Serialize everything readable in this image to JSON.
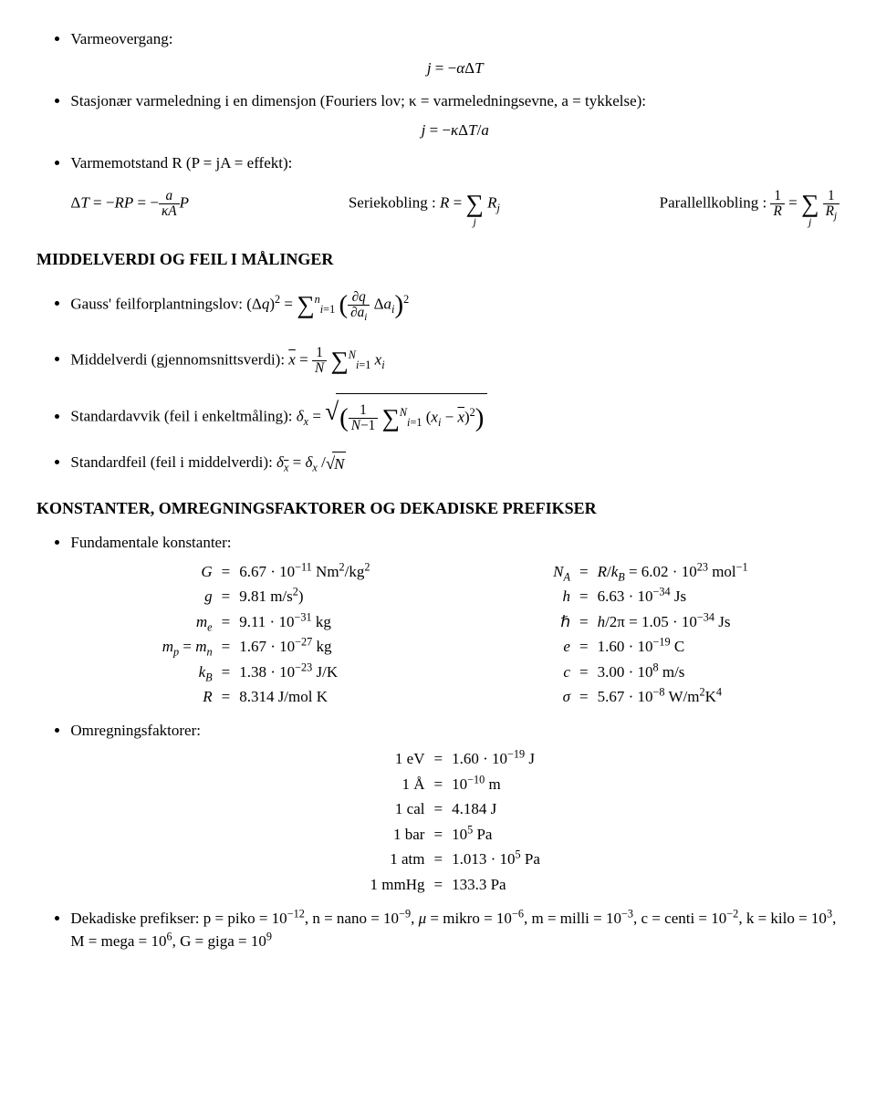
{
  "sections": {
    "heat_transfer": {
      "item1_label": "Varmeovergang:",
      "item1_eq": "j = −αΔT",
      "item2_label": "Stasjonær varmeledning i en dimensjon (Fouriers lov; κ = varmeledningsevne, a = tykkelse):",
      "item2_eq": "j = −κΔT/a",
      "item3_label": "Varmemotstand R (P = jA = effekt):",
      "eq3_left": "ΔT = −RP = −",
      "eq3_frac_num": "a",
      "eq3_frac_den": "κA",
      "eq3_left_end": "P",
      "eq3_mid_label": "Seriekobling : R =",
      "eq3_mid_sum_below": "j",
      "eq3_mid_term": "R",
      "eq3_mid_term_sub": "j",
      "eq3_right_label": "Parallellkobling :",
      "eq3_right_frac1_num": "1",
      "eq3_right_frac1_den": "R",
      "eq3_right_eq": "=",
      "eq3_right_sum_below": "j",
      "eq3_right_frac2_num": "1",
      "eq3_right_frac2_den_a": "R",
      "eq3_right_frac2_den_b": "j"
    },
    "stats_heading": "MIDDELVERDI OG FEIL I MÅLINGER",
    "stats": {
      "gauss_label": "Gauss' feilforplantningslov: (Δq)",
      "gauss_sq": "2",
      "gauss_eq": " = ",
      "gauss_sum_top": "n",
      "gauss_sum_bot": "i=1",
      "gauss_pd_num": "∂q",
      "gauss_pd_den_a": "∂a",
      "gauss_pd_den_b": "i",
      "gauss_after": " Δa",
      "gauss_after_sub": "i",
      "mean_label": "Middelverdi (gjennomsnittsverdi): ",
      "mean_sym": "x",
      "mean_eq": " = ",
      "mean_frac_num": "1",
      "mean_frac_den": "N",
      "mean_sum_top": "N",
      "mean_sum_bot": "i=1",
      "mean_term": " x",
      "mean_term_sub": "i",
      "std_label": "Standardavvik (feil i enkeltmåling): δ",
      "std_sub": "x",
      "std_eq": " = ",
      "std_frac_num": "1",
      "std_frac_den": "N−1",
      "std_sum_top": "N",
      "std_sum_bot": "i=1",
      "std_term_open": " (x",
      "std_term_sub": "i",
      "std_term_minus": " − ",
      "std_term_xbar": "x",
      "std_term_close_sq": ")",
      "std_term_sq": "2",
      "stderr_label": "Standardfeil (feil i middelverdi): δ",
      "stderr_xbar": "x",
      "stderr_eq": " = δ",
      "stderr_sub": "x",
      "stderr_div": "/",
      "stderr_sqrt": "N"
    },
    "const_heading": "KONSTANTER, OMREGNINGSFAKTORER OG DEKADISKE PREFIKSER",
    "const_item_label": "Fundamentale konstanter:",
    "constants_left": [
      {
        "l": "G",
        "r": "6.67 · 10⁻¹¹ Nm²/kg²"
      },
      {
        "l": "g",
        "r": "9.81 m/s²)"
      },
      {
        "l": "mₑ",
        "r": "9.11 · 10⁻³¹ kg"
      },
      {
        "l": "mₚ = mₙ",
        "r": "1.67 · 10⁻²⁷ kg"
      },
      {
        "l": "k_B",
        "r": "1.38 · 10⁻²³ J/K"
      },
      {
        "l": "R",
        "r": "8.314 J/mol K"
      }
    ],
    "constants_right": [
      {
        "l": "N_A",
        "r": "R/k_B = 6.02 · 10²³ mol⁻¹"
      },
      {
        "l": "h",
        "r": "6.63 · 10⁻³⁴ Js"
      },
      {
        "l": "ℏ",
        "r": "h/2π = 1.05 · 10⁻³⁴ Js"
      },
      {
        "l": "e",
        "r": "1.60 · 10⁻¹⁹ C"
      },
      {
        "l": "c",
        "r": "3.00 · 10⁸ m/s"
      },
      {
        "l": "σ",
        "r": "5.67 · 10⁻⁸ W/m²K⁴"
      }
    ],
    "conv_label": "Omregningsfaktorer:",
    "conversions": [
      {
        "l": "1 eV",
        "r": "1.60 · 10⁻¹⁹ J"
      },
      {
        "l": "1 Å",
        "r": "10⁻¹⁰ m"
      },
      {
        "l": "1 cal",
        "r": "4.184 J"
      },
      {
        "l": "1 bar",
        "r": "10⁵ Pa"
      },
      {
        "l": "1 atm",
        "r": "1.013 · 10⁵ Pa"
      },
      {
        "l": "1 mmHg",
        "r": "133.3 Pa"
      }
    ],
    "prefix_label": "Dekadiske prefikser: p = piko = 10⁻¹², n = nano = 10⁻⁹, μ = mikro = 10⁻⁶, m = milli = 10⁻³, c = centi = 10⁻², k = kilo = 10³, M = mega = 10⁶, G = giga = 10⁹"
  },
  "style": {
    "font_family": "Computer Modern / serif",
    "body_fontsize_pt": 12,
    "heading_fontsize_pt": 13,
    "text_color": "#000000",
    "background_color": "#ffffff"
  }
}
